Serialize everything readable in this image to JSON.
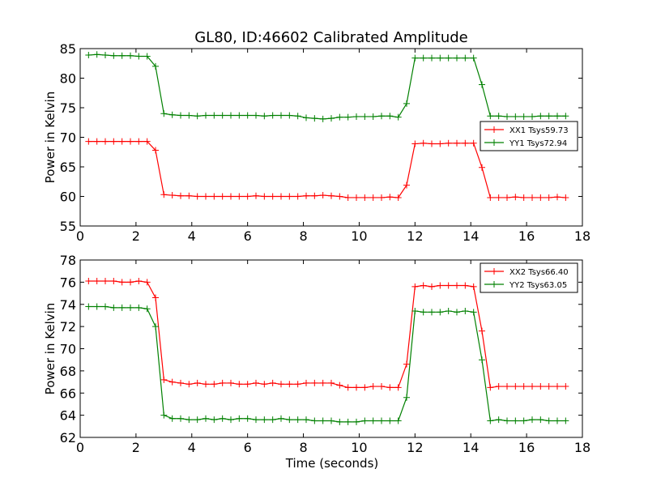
{
  "chart_data": [
    {
      "type": "line",
      "title": "GL80, ID:46602 Calibrated Amplitude",
      "xlabel": "",
      "ylabel": "Power in Kelvin",
      "xlim": [
        0,
        18
      ],
      "ylim": [
        55,
        85
      ],
      "xticks": [
        "0",
        "2",
        "4",
        "6",
        "8",
        "10",
        "12",
        "14",
        "16",
        "18"
      ],
      "yticks": [
        "55",
        "60",
        "65",
        "70",
        "75",
        "80",
        "85"
      ],
      "legend_position": "right",
      "x": [
        0.3,
        0.6,
        0.9,
        1.2,
        1.5,
        1.8,
        2.1,
        2.4,
        2.7,
        3.0,
        3.3,
        3.6,
        3.9,
        4.2,
        4.5,
        4.8,
        5.1,
        5.4,
        5.7,
        6.0,
        6.3,
        6.6,
        6.9,
        7.2,
        7.5,
        7.8,
        8.1,
        8.4,
        8.7,
        9.0,
        9.3,
        9.6,
        9.9,
        10.2,
        10.5,
        10.8,
        11.1,
        11.4,
        11.7,
        12.0,
        12.3,
        12.6,
        12.9,
        13.2,
        13.5,
        13.8,
        14.1,
        14.4,
        14.7,
        15.0,
        15.3,
        15.6,
        15.9,
        16.2,
        16.5,
        16.8,
        17.1,
        17.4
      ],
      "series": [
        {
          "name": "XX1 Tsys59.73",
          "color": "#ff0000",
          "values": [
            69.3,
            69.3,
            69.3,
            69.3,
            69.3,
            69.3,
            69.3,
            69.3,
            67.8,
            60.3,
            60.2,
            60.1,
            60.1,
            60.0,
            60.0,
            60.0,
            60.0,
            60.0,
            60.0,
            60.0,
            60.1,
            60.0,
            60.0,
            60.0,
            60.0,
            60.0,
            60.1,
            60.1,
            60.2,
            60.1,
            60.0,
            59.8,
            59.8,
            59.8,
            59.8,
            59.8,
            59.9,
            59.8,
            61.9,
            68.9,
            69.0,
            68.9,
            68.9,
            69.0,
            69.0,
            69.0,
            69.0,
            64.9,
            59.8,
            59.8,
            59.8,
            59.9,
            59.8,
            59.8,
            59.8,
            59.8,
            59.9,
            59.8
          ]
        },
        {
          "name": "YY1 Tsys72.94",
          "color": "#008000",
          "values": [
            83.9,
            84.0,
            83.9,
            83.8,
            83.8,
            83.8,
            83.7,
            83.7,
            82.0,
            74.0,
            73.8,
            73.7,
            73.7,
            73.6,
            73.7,
            73.7,
            73.7,
            73.7,
            73.7,
            73.7,
            73.7,
            73.6,
            73.7,
            73.7,
            73.7,
            73.6,
            73.3,
            73.2,
            73.1,
            73.2,
            73.4,
            73.4,
            73.5,
            73.5,
            73.5,
            73.6,
            73.6,
            73.4,
            75.7,
            83.4,
            83.4,
            83.4,
            83.4,
            83.4,
            83.4,
            83.4,
            83.4,
            78.9,
            73.6,
            73.6,
            73.5,
            73.5,
            73.5,
            73.5,
            73.6,
            73.6,
            73.6,
            73.6
          ]
        }
      ]
    },
    {
      "type": "line",
      "title": "",
      "xlabel": "Time (seconds)",
      "ylabel": "Power in Kelvin",
      "xlim": [
        0,
        18
      ],
      "ylim": [
        62,
        78
      ],
      "xticks": [
        "0",
        "2",
        "4",
        "6",
        "8",
        "10",
        "12",
        "14",
        "16",
        "18"
      ],
      "yticks": [
        "62",
        "64",
        "66",
        "68",
        "70",
        "72",
        "74",
        "76",
        "78"
      ],
      "legend_position": "top-right",
      "x": [
        0.3,
        0.6,
        0.9,
        1.2,
        1.5,
        1.8,
        2.1,
        2.4,
        2.7,
        3.0,
        3.3,
        3.6,
        3.9,
        4.2,
        4.5,
        4.8,
        5.1,
        5.4,
        5.7,
        6.0,
        6.3,
        6.6,
        6.9,
        7.2,
        7.5,
        7.8,
        8.1,
        8.4,
        8.7,
        9.0,
        9.3,
        9.6,
        9.9,
        10.2,
        10.5,
        10.8,
        11.1,
        11.4,
        11.7,
        12.0,
        12.3,
        12.6,
        12.9,
        13.2,
        13.5,
        13.8,
        14.1,
        14.4,
        14.7,
        15.0,
        15.3,
        15.6,
        15.9,
        16.2,
        16.5,
        16.8,
        17.1,
        17.4
      ],
      "series": [
        {
          "name": "XX2 Tsys66.40",
          "color": "#ff0000",
          "values": [
            76.1,
            76.1,
            76.1,
            76.1,
            76.0,
            76.0,
            76.1,
            76.0,
            74.6,
            67.2,
            67.0,
            66.9,
            66.8,
            66.9,
            66.8,
            66.8,
            66.9,
            66.9,
            66.8,
            66.8,
            66.9,
            66.8,
            66.9,
            66.8,
            66.8,
            66.8,
            66.9,
            66.9,
            66.9,
            66.9,
            66.7,
            66.5,
            66.5,
            66.5,
            66.6,
            66.6,
            66.5,
            66.5,
            68.6,
            75.6,
            75.7,
            75.6,
            75.7,
            75.7,
            75.7,
            75.7,
            75.6,
            71.6,
            66.5,
            66.6,
            66.6,
            66.6,
            66.6,
            66.6,
            66.6,
            66.6,
            66.6,
            66.6
          ]
        },
        {
          "name": "YY2 Tsys63.05",
          "color": "#008000",
          "values": [
            73.8,
            73.8,
            73.8,
            73.7,
            73.7,
            73.7,
            73.7,
            73.6,
            72.0,
            64.0,
            63.7,
            63.7,
            63.6,
            63.6,
            63.7,
            63.6,
            63.7,
            63.6,
            63.7,
            63.7,
            63.6,
            63.6,
            63.6,
            63.7,
            63.6,
            63.6,
            63.6,
            63.5,
            63.5,
            63.5,
            63.4,
            63.4,
            63.4,
            63.5,
            63.5,
            63.5,
            63.5,
            63.5,
            65.6,
            73.4,
            73.3,
            73.3,
            73.3,
            73.4,
            73.3,
            73.4,
            73.3,
            69.0,
            63.5,
            63.6,
            63.5,
            63.5,
            63.5,
            63.6,
            63.6,
            63.5,
            63.5,
            63.5
          ]
        }
      ]
    }
  ]
}
